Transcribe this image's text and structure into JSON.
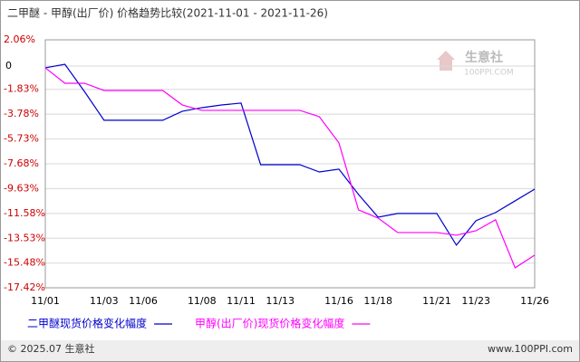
{
  "chart_data": {
    "type": "line",
    "title": "二甲醚 - 甲醇(出厂价) 价格趋势比较(2021-11-01 - 2021-11-26)",
    "categories": [
      "11/01",
      null,
      null,
      "11/03",
      null,
      "11/06",
      null,
      null,
      "11/08",
      null,
      "11/11",
      null,
      "11/13",
      null,
      null,
      "11/16",
      null,
      "11/18",
      null,
      null,
      "11/21",
      null,
      "11/23",
      null,
      null,
      "11/26"
    ],
    "series": [
      {
        "name": "二甲醚现货价格变化幅度",
        "color": "#0000cc",
        "values": [
          -0.14,
          0.14,
          -2.0,
          -4.26,
          -4.26,
          -4.26,
          -4.26,
          -3.55,
          -3.27,
          -3.06,
          -2.91,
          -7.75,
          -7.75,
          -7.75,
          -8.32,
          -8.1,
          -10.09,
          -11.87,
          -11.58,
          -11.58,
          -11.58,
          -14.07,
          -12.15,
          -11.51,
          -10.59,
          -9.67
        ]
      },
      {
        "name": "甲醇(出厂价)现货价格变化幅度",
        "color": "#ff00ff",
        "values": [
          -0.14,
          -1.35,
          -1.35,
          -1.92,
          -1.92,
          -1.92,
          -1.92,
          -3.06,
          -3.48,
          -3.48,
          -3.48,
          -3.48,
          -3.48,
          -3.48,
          -3.98,
          -6.04,
          -11.3,
          -11.94,
          -13.08,
          -13.08,
          -13.08,
          -13.29,
          -12.94,
          -12.08,
          -15.85,
          -14.85
        ]
      }
    ],
    "ylim": [
      -17.42,
      2.06
    ],
    "yticks": [
      {
        "value": 2.06,
        "label": "2.06%"
      },
      0,
      {
        "value": -1.83,
        "label": "-1.83%"
      },
      {
        "value": -3.78,
        "label": "-3.78%"
      },
      {
        "value": -5.73,
        "label": "-5.73%"
      },
      {
        "value": -7.68,
        "label": "-7.68%"
      },
      {
        "value": -9.63,
        "label": "-9.63%"
      },
      {
        "value": -11.58,
        "label": "-11.58%"
      },
      {
        "value": -13.53,
        "label": "-13.53%"
      },
      {
        "value": -15.48,
        "label": "-15.48%"
      },
      {
        "value": -17.42,
        "label": "-17.42%"
      }
    ],
    "grid": true
  },
  "watermark": {
    "name": "生意社",
    "site": "100PPI.COM"
  },
  "footer": {
    "copyright": "© 2025.07 生意社",
    "url": "www.100PPI.com"
  }
}
